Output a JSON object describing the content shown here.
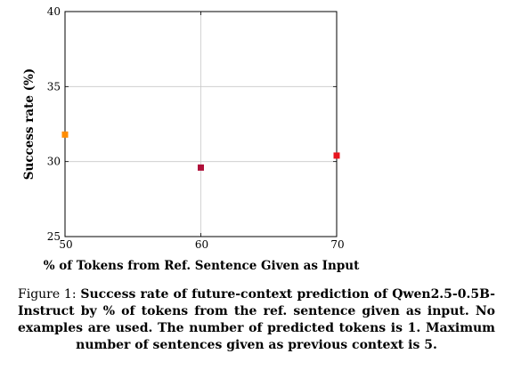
{
  "chart_data": {
    "type": "scatter",
    "x": [
      50,
      60,
      70
    ],
    "y": [
      31.8,
      29.6,
      30.4
    ],
    "point_colors": [
      "#ff8c00",
      "#b0103a",
      "#e8141e"
    ],
    "xlabel": "% of Tokens from Ref. Sentence Given as Input",
    "ylabel": "Success rate (%)",
    "xlim": [
      50,
      70
    ],
    "ylim": [
      25,
      40
    ],
    "x_ticks": [
      50,
      60,
      70
    ],
    "y_ticks": [
      25,
      30,
      35,
      40
    ],
    "grid": true
  },
  "caption": {
    "prefix": "Figure 1:",
    "text": "Success rate of future-context prediction of Qwen2.5-0.5B-Instruct by % of tokens from the ref. sentence given as input. No examples are used. The number of predicted tokens is 1. Maximum number of sentences given as previous context is 5."
  }
}
